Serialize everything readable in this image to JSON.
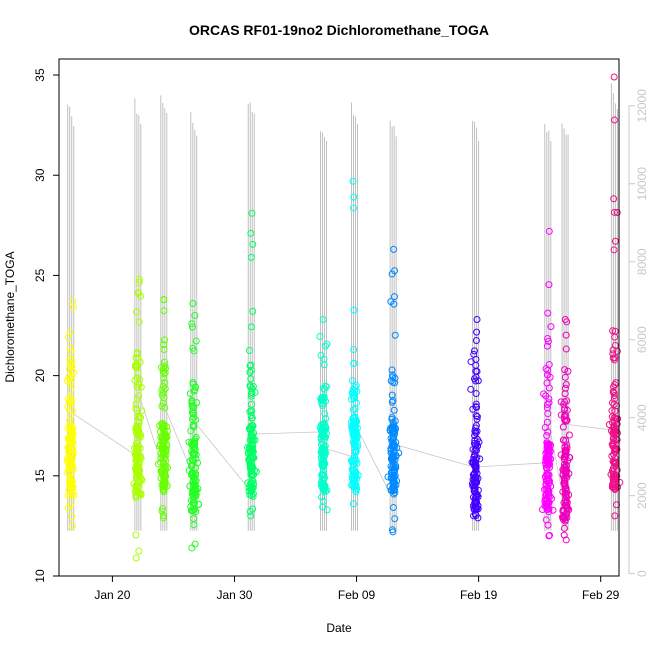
{
  "chart_data": {
    "type": "scatter",
    "title": "ORCAS RF01-19no2 Dichloromethane_TOGA",
    "xlabel": "Date",
    "ylabel": "Dichloromethane_TOGA",
    "x_axis": {
      "type": "date",
      "range": [
        "2016-01-15T15:00",
        "2016-03-01T12:00"
      ],
      "ticks": [
        "2016-01-20",
        "2016-01-30",
        "2016-02-09",
        "2016-02-19",
        "2016-02-29"
      ],
      "tick_labels": [
        "Jan 20",
        "Jan 30",
        "Feb 09",
        "Feb 19",
        "Feb 29"
      ]
    },
    "y_axis": {
      "range": [
        10,
        35.8
      ],
      "ticks": [
        10,
        15,
        20,
        25,
        30,
        35
      ],
      "tick_labels": [
        "10",
        "15",
        "20",
        "25",
        "30",
        "35"
      ]
    },
    "y2_axis": {
      "range": [
        -60,
        13200
      ],
      "ticks": [
        0,
        2000,
        4000,
        6000,
        8000,
        10000,
        12000
      ],
      "tick_labels": [
        "0",
        "2000",
        "4000",
        "6000",
        "8000",
        "10000",
        "12000"
      ],
      "color": "#c8c8c8"
    },
    "grid": false,
    "legend": "none",
    "altitude_color": "#c0c0c0",
    "series": [
      {
        "color": "#ffff00",
        "center": "2016-01-16T14:00",
        "core": [
          14.0,
          20.8
        ],
        "min": 12.5,
        "max": 23.7,
        "alt_max": 12200
      },
      {
        "color": "#aaff00",
        "center": "2016-01-22T02:00",
        "core": [
          14.0,
          21.3
        ],
        "min": 10.9,
        "max": 24.8,
        "alt_max": 12200
      },
      {
        "color": "#66ff00",
        "center": "2016-01-24T05:00",
        "core": [
          14.2,
          20.6
        ],
        "min": 12.9,
        "max": 23.8,
        "alt_max": 12400
      },
      {
        "color": "#22ff22",
        "center": "2016-01-26T16:00",
        "core": [
          13.2,
          19.8
        ],
        "min": 11.4,
        "max": 23.6,
        "alt_max": 11900
      },
      {
        "color": "#00ff66",
        "center": "2016-01-31T09:00",
        "core": [
          14.0,
          20.6
        ],
        "min": 13.0,
        "max": 28.1,
        "alt_max": 12300
      },
      {
        "color": "#00ffcc",
        "center": "2016-02-06T07:00",
        "core": [
          14.2,
          19.6
        ],
        "min": 13.3,
        "max": 22.8,
        "alt_max": 11600
      },
      {
        "color": "#00ffff",
        "center": "2016-02-08T20:00",
        "core": [
          14.4,
          19.8
        ],
        "min": 13.6,
        "max": 29.7,
        "alt_max": 12100
      },
      {
        "color": "#0088ff",
        "center": "2016-02-12T00:00",
        "core": [
          14.0,
          20.8
        ],
        "min": 12.2,
        "max": 26.3,
        "alt_max": 11800
      },
      {
        "color": "#4400ff",
        "center": "2016-02-18T18:00",
        "core": [
          13.2,
          20.6
        ],
        "min": 12.9,
        "max": 22.8,
        "alt_max": 11800
      },
      {
        "color": "#ff00ff",
        "center": "2016-02-24T16:00",
        "core": [
          13.2,
          20.8
        ],
        "min": 12.0,
        "max": 27.2,
        "alt_max": 11700
      },
      {
        "color": "#ee00bb",
        "center": "2016-02-26T02:00",
        "core": [
          12.8,
          19.8
        ],
        "min": 11.8,
        "max": 22.8,
        "alt_max": 11800
      },
      {
        "color": "#ee1188",
        "center": "2016-03-01T03:00",
        "core": [
          14.4,
          22.4
        ],
        "min": 13.0,
        "max": 34.9,
        "alt_max": 12600
      }
    ]
  }
}
